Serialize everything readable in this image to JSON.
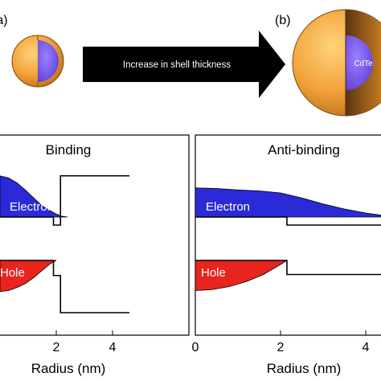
{
  "figure": {
    "panel_a_label": "(a)",
    "panel_b_label": "(b)",
    "arrow_text": "Increase in shell thickness",
    "core_material": "CdTe",
    "colors": {
      "shell": "#f0a030",
      "core": "#7a55e8",
      "electron_fill": "#2a2ad8",
      "hole_fill": "#e8241e",
      "line": "#000000"
    }
  },
  "chart_data": [
    {
      "type": "line",
      "title": "Binding",
      "xlabel": "Radius (nm)",
      "ylabel": "",
      "xlim": [
        0,
        4.6
      ],
      "x_ticks": [
        {
          "value": 2,
          "label": "2"
        },
        {
          "value": 4,
          "label": "4"
        }
      ],
      "band_edges": {
        "conduction": [
          [
            0,
            0
          ],
          [
            1.9,
            0
          ],
          [
            1.9,
            -0.4
          ],
          [
            2.15,
            -0.4
          ],
          [
            2.15,
            2.05
          ],
          [
            4.6,
            2.05
          ]
        ],
        "valence": [
          [
            0,
            0
          ],
          [
            1.9,
            0
          ],
          [
            1.9,
            -0.75
          ],
          [
            2.15,
            -0.75
          ],
          [
            2.15,
            -2.6
          ],
          [
            4.6,
            -2.6
          ]
        ]
      },
      "series": [
        {
          "name": "Electron",
          "baseline": "conduction",
          "x": [
            0,
            0.3,
            0.6,
            0.9,
            1.2,
            1.5,
            1.8,
            2.0,
            2.2,
            2.4
          ],
          "y": [
            2.05,
            1.95,
            1.7,
            1.35,
            0.95,
            0.55,
            0.3,
            0.15,
            0.04,
            0
          ]
        },
        {
          "name": "Hole",
          "baseline": "valence",
          "x": [
            0,
            0.3,
            0.6,
            0.9,
            1.2,
            1.5,
            1.8,
            2.0
          ],
          "y": [
            -1.55,
            -1.5,
            -1.35,
            -1.15,
            -0.85,
            -0.5,
            -0.15,
            0
          ]
        }
      ]
    },
    {
      "type": "line",
      "title": "Anti-binding",
      "xlabel": "Radius (nm)",
      "ylabel": "",
      "xlim": [
        0,
        4.6
      ],
      "x_ticks": [
        {
          "value": 0,
          "label": "0"
        },
        {
          "value": 2,
          "label": "2"
        },
        {
          "value": 4,
          "label": "4"
        }
      ],
      "band_edges": {
        "conduction": [
          [
            0,
            0
          ],
          [
            2.15,
            0
          ],
          [
            2.15,
            -0.4
          ],
          [
            4.6,
            -0.4
          ]
        ],
        "valence": [
          [
            0,
            0
          ],
          [
            2.15,
            0
          ],
          [
            2.15,
            -0.7
          ],
          [
            4.6,
            -0.7
          ]
        ]
      },
      "series": [
        {
          "name": "Electron",
          "baseline": "conduction",
          "x": [
            0,
            0.5,
            1.0,
            1.5,
            2.0,
            2.5,
            3.0,
            3.5,
            4.0,
            4.6
          ],
          "y": [
            1.45,
            1.42,
            1.35,
            1.3,
            1.2,
            0.95,
            0.65,
            0.4,
            0.2,
            0.02
          ]
        },
        {
          "name": "Hole",
          "baseline": "valence",
          "x": [
            0,
            0.4,
            0.8,
            1.2,
            1.6,
            2.0,
            2.15
          ],
          "y": [
            -1.5,
            -1.45,
            -1.3,
            -1.05,
            -0.7,
            -0.2,
            0
          ]
        }
      ]
    }
  ]
}
